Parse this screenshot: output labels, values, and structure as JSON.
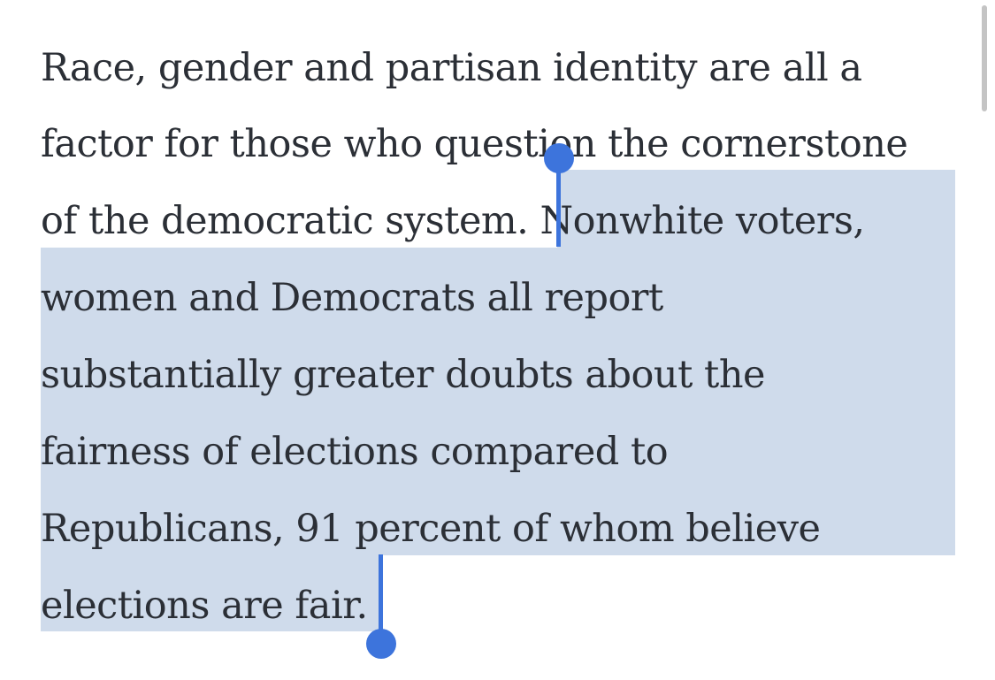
{
  "article": {
    "paragraph_lines": [
      "Race, gender and partisan identity are all a",
      "factor for those who question the cornerstone",
      "of the democratic system. Nonwhite voters,",
      "women and Democrats all report",
      "substantially greater doubts about the",
      "fairness of elections compared to",
      "Republicans, 91 percent of whom believe",
      "elections are fair."
    ],
    "selected_text": "Nonwhite voters, women and Democrats all report substantially greater doubts about the fairness of elections compared to Republicans, 91 percent of whom believe elections are fair."
  },
  "colors": {
    "text": "#2b2f36",
    "selection": "#cfdbeb",
    "handle": "#3d74dc",
    "scrollbar": "#c4c4c4"
  }
}
